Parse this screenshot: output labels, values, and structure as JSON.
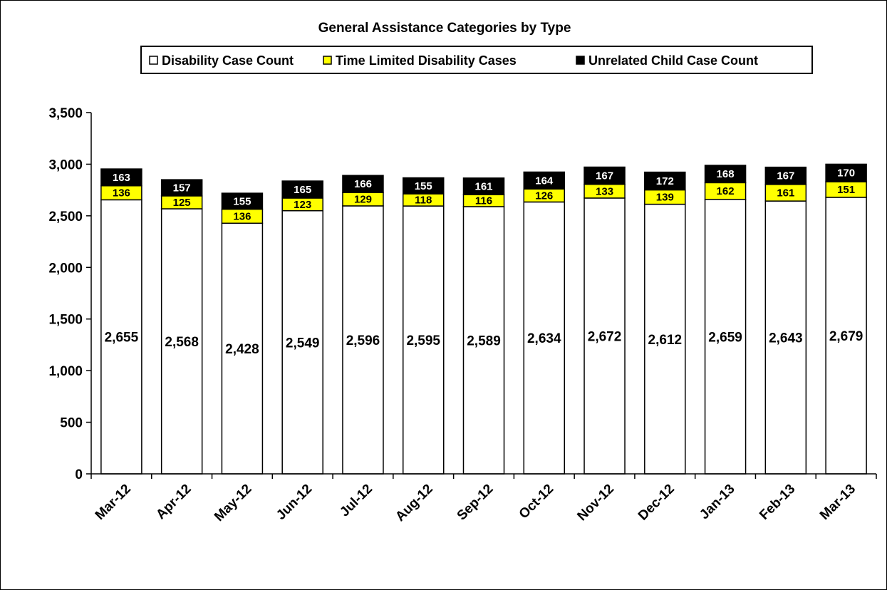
{
  "chart_data": {
    "type": "bar",
    "stacked": true,
    "title": "General Assistance Categories by Type",
    "categories": [
      "Mar-12",
      "Apr-12",
      "May-12",
      "Jun-12",
      "Jul-12",
      "Aug-12",
      "Sep-12",
      "Oct-12",
      "Nov-12",
      "Dec-12",
      "Jan-13",
      "Feb-13",
      "Mar-13"
    ],
    "series": [
      {
        "name": "Disability Case Count",
        "color": "#ffffff",
        "label_color": "#000000",
        "values": [
          2655,
          2568,
          2428,
          2549,
          2596,
          2595,
          2589,
          2634,
          2672,
          2612,
          2659,
          2643,
          2679
        ],
        "labels": [
          "2,655",
          "2,568",
          "2,428",
          "2,549",
          "2,596",
          "2,595",
          "2,589",
          "2,634",
          "2,672",
          "2,612",
          "2,659",
          "2,643",
          "2,679"
        ]
      },
      {
        "name": "Time Limited Disability Cases",
        "color": "#ffff00",
        "label_color": "#000000",
        "values": [
          136,
          125,
          136,
          123,
          129,
          118,
          116,
          126,
          133,
          139,
          162,
          161,
          151
        ],
        "labels": [
          "136",
          "125",
          "136",
          "123",
          "129",
          "118",
          "116",
          "126",
          "133",
          "139",
          "162",
          "161",
          "151"
        ]
      },
      {
        "name": "Unrelated Child Case Count",
        "color": "#000000",
        "label_color": "#ffffff",
        "values": [
          163,
          157,
          155,
          165,
          166,
          155,
          161,
          164,
          167,
          172,
          168,
          167,
          170
        ],
        "labels": [
          "163",
          "157",
          "155",
          "165",
          "166",
          "155",
          "161",
          "164",
          "167",
          "172",
          "168",
          "167",
          "170"
        ]
      }
    ],
    "ylim": [
      0,
      3500
    ],
    "yticks": [
      0,
      500,
      1000,
      1500,
      2000,
      2500,
      3000,
      3500
    ],
    "ytick_labels": [
      "0",
      "500",
      "1,000",
      "1,500",
      "2,000",
      "2,500",
      "3,000",
      "3,500"
    ],
    "xlabel": "",
    "ylabel": "",
    "grid": false,
    "legend_position": "top"
  }
}
